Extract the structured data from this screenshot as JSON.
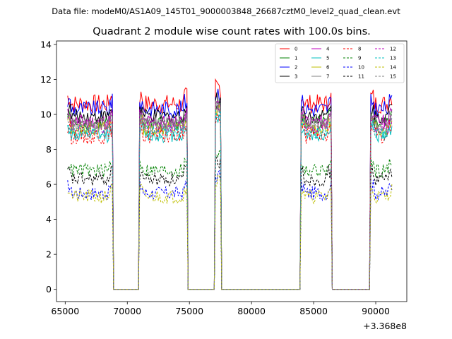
{
  "chart_data": {
    "type": "line",
    "suptitle": "Data file: modeM0/AS1A09_145T01_9000003848_26687cztM0_level2_quad_clean.evt",
    "title": "Quadrant 2 module wise count rates with 100.0s bins.",
    "xlabel": "",
    "ylabel": "",
    "x_offset_label": "+3.368e8",
    "xlim": [
      64300,
      92500
    ],
    "ylim": [
      -0.7,
      14.2
    ],
    "x_ticks": [
      65000,
      70000,
      75000,
      80000,
      85000,
      90000
    ],
    "x_tick_labels": [
      "65000",
      "70000",
      "75000",
      "80000",
      "85000",
      "90000"
    ],
    "y_ticks": [
      0,
      2,
      4,
      6,
      8,
      10,
      12,
      14
    ],
    "y_tick_labels": [
      "0",
      "2",
      "4",
      "6",
      "8",
      "10",
      "12",
      "14"
    ],
    "legend_position": "top-right",
    "legend_columns": 4,
    "active_segments": [
      [
        65200,
        68800
      ],
      [
        71000,
        74800
      ],
      [
        77100,
        77500
      ],
      [
        84000,
        86400
      ],
      [
        89600,
        91300
      ]
    ],
    "gap_segments": [
      [
        69000,
        70900
      ],
      [
        75000,
        76900
      ],
      [
        77600,
        83900
      ],
      [
        86500,
        89500
      ]
    ],
    "series": [
      {
        "name": "0",
        "color": "#ff0000",
        "dash": "solid",
        "level": 10.6,
        "amp": 0.55
      },
      {
        "name": "1",
        "color": "#008000",
        "dash": "solid",
        "level": 9.5,
        "amp": 0.4
      },
      {
        "name": "2",
        "color": "#0000ff",
        "dash": "solid",
        "level": 10.3,
        "amp": 0.5
      },
      {
        "name": "3",
        "color": "#000000",
        "dash": "solid",
        "level": 9.9,
        "amp": 0.4
      },
      {
        "name": "4",
        "color": "#bf00bf",
        "dash": "solid",
        "level": 9.6,
        "amp": 0.4
      },
      {
        "name": "5",
        "color": "#00bfbf",
        "dash": "solid",
        "level": 8.8,
        "amp": 0.4
      },
      {
        "name": "6",
        "color": "#bfbf00",
        "dash": "solid",
        "level": 9.2,
        "amp": 0.4
      },
      {
        "name": "7",
        "color": "#808080",
        "dash": "solid",
        "level": 9.4,
        "amp": 0.4
      },
      {
        "name": "8",
        "color": "#ff0000",
        "dash": "dashed",
        "level": 8.8,
        "amp": 0.5
      },
      {
        "name": "9",
        "color": "#008000",
        "dash": "dashed",
        "level": 6.8,
        "amp": 0.4
      },
      {
        "name": "10",
        "color": "#0000ff",
        "dash": "dashed",
        "level": 5.5,
        "amp": 0.4
      },
      {
        "name": "11",
        "color": "#000000",
        "dash": "dashed",
        "level": 6.3,
        "amp": 0.4
      },
      {
        "name": "12",
        "color": "#bf00bf",
        "dash": "dashed",
        "level": 9.3,
        "amp": 0.4
      },
      {
        "name": "13",
        "color": "#00bfbf",
        "dash": "dashed",
        "level": 9.0,
        "amp": 0.4
      },
      {
        "name": "14",
        "color": "#bfbf00",
        "dash": "dashed",
        "level": 5.3,
        "amp": 0.4
      },
      {
        "name": "15",
        "color": "#808080",
        "dash": "dashed",
        "level": 9.5,
        "amp": 0.4
      }
    ]
  }
}
